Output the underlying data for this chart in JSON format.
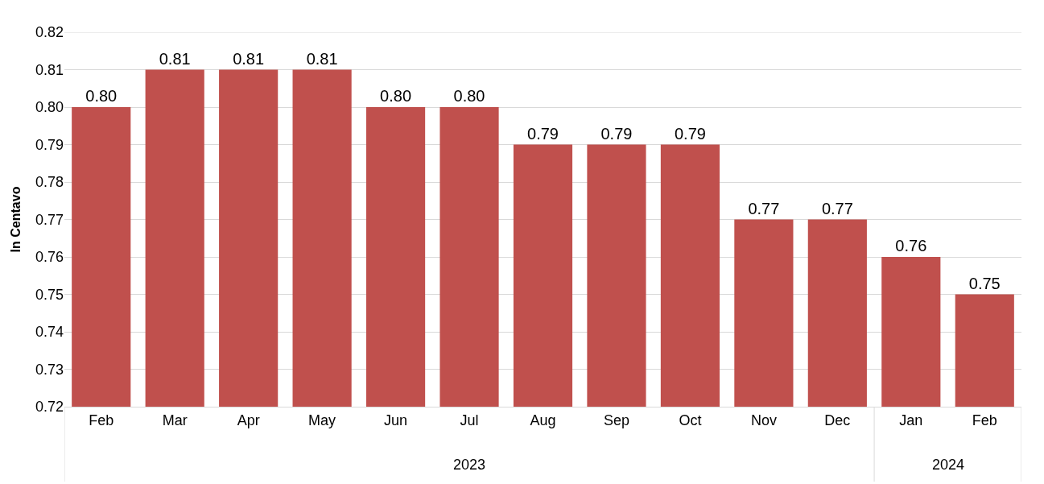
{
  "chart_data": {
    "type": "bar",
    "ylabel": "In Centavo",
    "categories": [
      "Feb",
      "Mar",
      "Apr",
      "May",
      "Jun",
      "Jul",
      "Aug",
      "Sep",
      "Oct",
      "Nov",
      "Dec",
      "Jan",
      "Feb"
    ],
    "values": [
      0.8,
      0.81,
      0.81,
      0.81,
      0.8,
      0.8,
      0.79,
      0.79,
      0.79,
      0.77,
      0.77,
      0.76,
      0.75
    ],
    "value_labels": [
      "0.80",
      "0.81",
      "0.81",
      "0.81",
      "0.80",
      "0.80",
      "0.79",
      "0.79",
      "0.79",
      "0.77",
      "0.77",
      "0.76",
      "0.75"
    ],
    "color": "#c0504d",
    "ylim": [
      0.72,
      0.82
    ],
    "yticks": [
      "0.72",
      "0.73",
      "0.74",
      "0.75",
      "0.76",
      "0.77",
      "0.78",
      "0.79",
      "0.80",
      "0.81",
      "0.82"
    ],
    "grid": "y",
    "annotations": [
      "2023",
      "2024"
    ]
  }
}
